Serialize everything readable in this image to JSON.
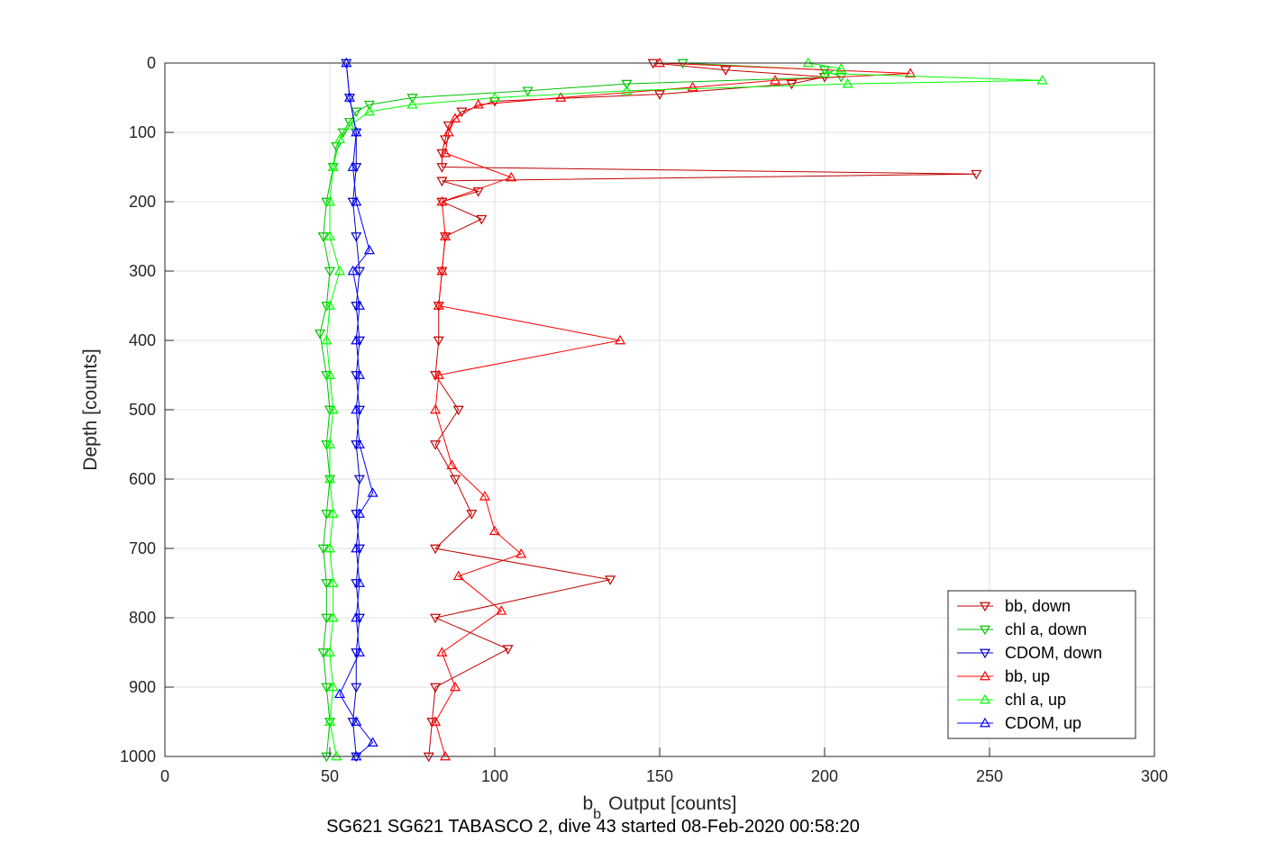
{
  "chart_data": {
    "type": "scatter",
    "xlabel": "Output [counts]",
    "xlabel_prefix": "b",
    "xlabel_subscript": "b",
    "ylabel": "Depth [counts]",
    "caption": "SG621 SG621 TABASCO 2, dive 43 started 08-Feb-2020 00:58:20",
    "xlim": [
      0,
      300
    ],
    "ylim": [
      0,
      1000
    ],
    "y_reversed": true,
    "grid": true,
    "legend_position": "bottom-right",
    "x_ticks": [
      "0",
      "50",
      "100",
      "150",
      "200",
      "250",
      "300"
    ],
    "y_ticks": [
      "0",
      "100",
      "200",
      "300",
      "400",
      "500",
      "600",
      "700",
      "800",
      "900",
      "1000"
    ],
    "series": [
      {
        "name": "bb, down",
        "color": "#c00000",
        "marker": "triangle-down",
        "depth": [
          0,
          10,
          20,
          30,
          45,
          55,
          70,
          90,
          110,
          130,
          150,
          160,
          170,
          185,
          200,
          225,
          250,
          300,
          350,
          400,
          450,
          500,
          550,
          600,
          650,
          700,
          745,
          800,
          845,
          900,
          950,
          1000
        ],
        "values": [
          148,
          170,
          200,
          190,
          150,
          100,
          90,
          86,
          85,
          84,
          84,
          246,
          84,
          95,
          84,
          96,
          85,
          84,
          83,
          83,
          82,
          89,
          82,
          88,
          93,
          82,
          135,
          82,
          104,
          82,
          81,
          80
        ]
      },
      {
        "name": "chl a, down",
        "color": "#00c000",
        "marker": "triangle-down",
        "depth": [
          0,
          10,
          20,
          30,
          40,
          50,
          60,
          70,
          85,
          100,
          120,
          150,
          200,
          250,
          300,
          350,
          390,
          450,
          500,
          550,
          600,
          650,
          700,
          750,
          800,
          850,
          900,
          950,
          1000
        ],
        "values": [
          157,
          200,
          205,
          140,
          110,
          75,
          62,
          58,
          56,
          54,
          52,
          51,
          49,
          48,
          50,
          49,
          47,
          49,
          50,
          49,
          50,
          49,
          48,
          49,
          49,
          48,
          49,
          50,
          49
        ]
      },
      {
        "name": "CDOM, down",
        "color": "#0000c0",
        "marker": "triangle-down",
        "depth": [
          0,
          50,
          100,
          150,
          200,
          250,
          300,
          350,
          400,
          450,
          500,
          550,
          600,
          650,
          700,
          750,
          800,
          850,
          900,
          950,
          1000
        ],
        "values": [
          55,
          56,
          58,
          58,
          57,
          58,
          59,
          58,
          59,
          58,
          59,
          58,
          59,
          58,
          59,
          58,
          59,
          58,
          58,
          57,
          58
        ]
      },
      {
        "name": "bb, up",
        "color": "#ff0000",
        "marker": "triangle-up",
        "depth": [
          0,
          15,
          25,
          35,
          50,
          60,
          80,
          100,
          130,
          165,
          200,
          250,
          300,
          350,
          400,
          450,
          500,
          580,
          625,
          675,
          708,
          740,
          790,
          850,
          900,
          950,
          1000
        ],
        "values": [
          150,
          226,
          185,
          160,
          120,
          95,
          88,
          86,
          85,
          105,
          84,
          85,
          84,
          83,
          138,
          83,
          82,
          87,
          97,
          100,
          108,
          89,
          102,
          84,
          88,
          82,
          85
        ]
      },
      {
        "name": "chl a, up",
        "color": "#00ff00",
        "marker": "triangle-up",
        "depth": [
          0,
          8,
          15,
          25,
          30,
          40,
          50,
          60,
          70,
          90,
          110,
          150,
          200,
          250,
          300,
          350,
          400,
          450,
          500,
          550,
          600,
          650,
          700,
          750,
          800,
          850,
          900,
          950,
          1000
        ],
        "values": [
          195,
          205,
          200,
          266,
          207,
          140,
          100,
          75,
          62,
          56,
          53,
          51,
          50,
          50,
          53,
          50,
          49,
          50,
          51,
          50,
          50,
          51,
          50,
          51,
          51,
          50,
          51,
          50,
          52
        ]
      },
      {
        "name": "CDOM, up",
        "color": "#0000ff",
        "marker": "triangle-up",
        "depth": [
          0,
          50,
          100,
          150,
          200,
          270,
          300,
          350,
          400,
          450,
          500,
          550,
          620,
          650,
          700,
          750,
          800,
          850,
          910,
          950,
          980,
          1000
        ],
        "values": [
          55,
          56,
          58,
          57,
          58,
          62,
          57,
          59,
          58,
          59,
          58,
          59,
          63,
          59,
          58,
          59,
          58,
          59,
          53,
          58,
          63,
          58
        ]
      }
    ]
  }
}
